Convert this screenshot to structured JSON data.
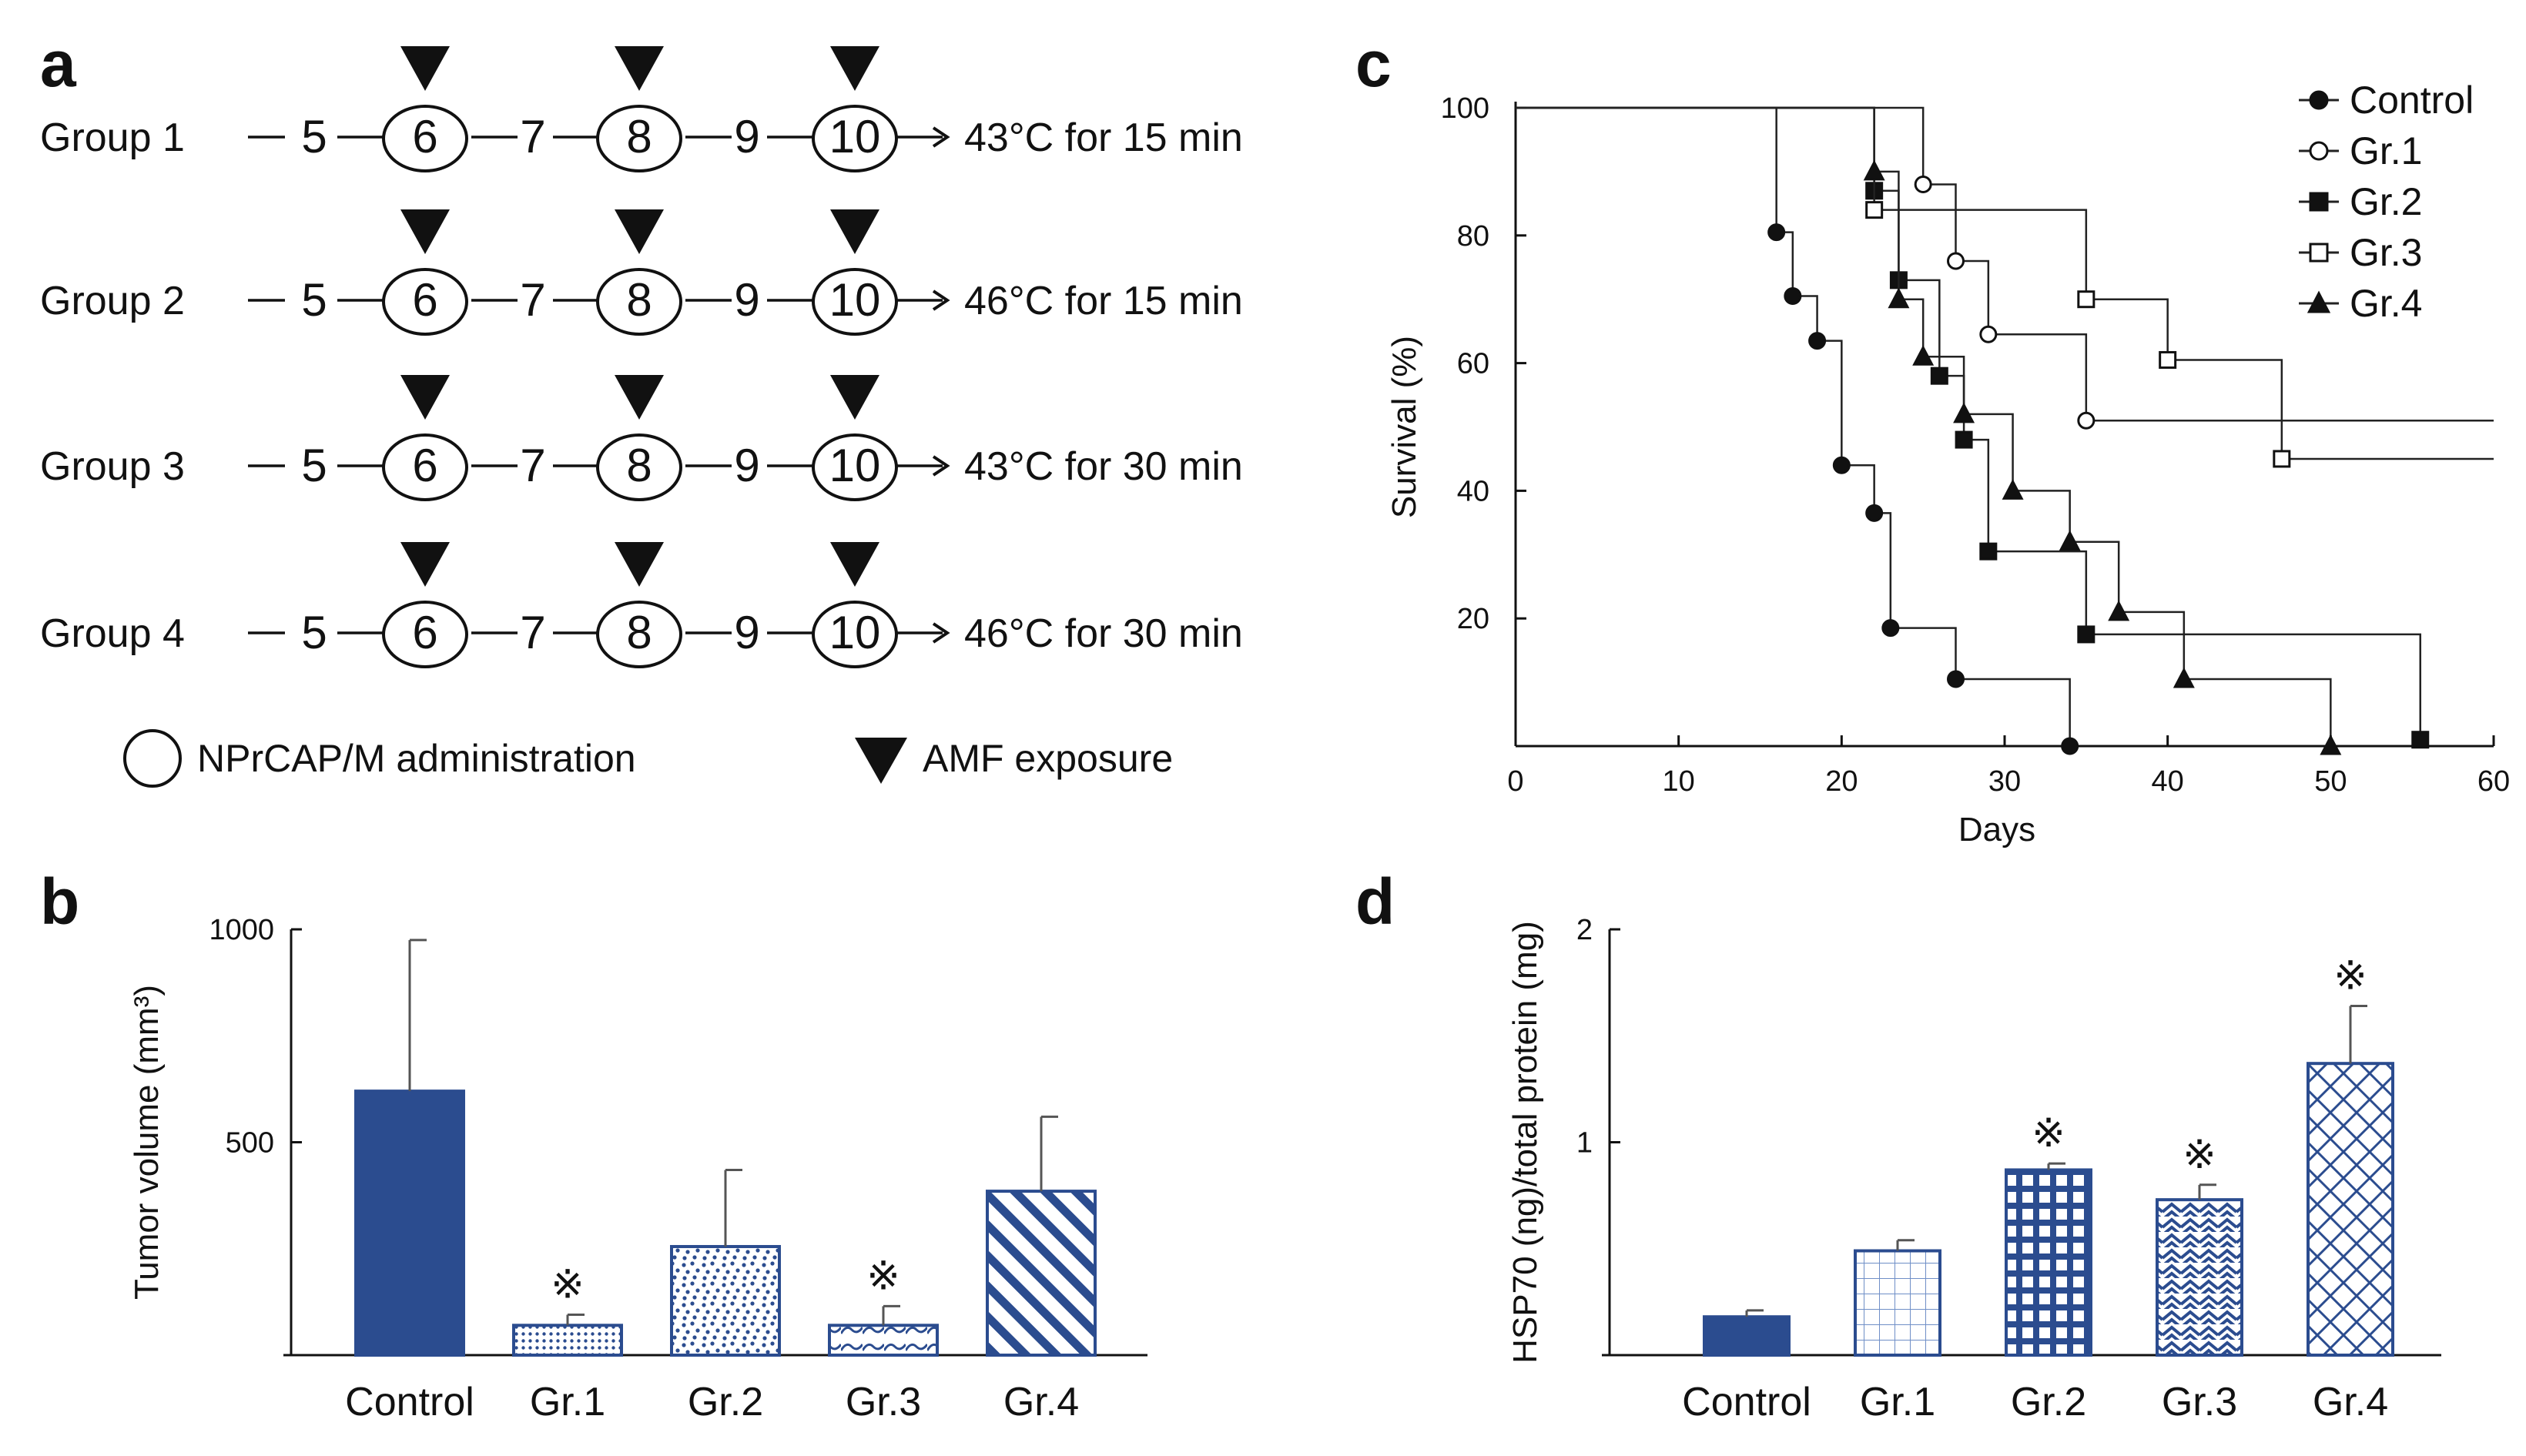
{
  "panels": {
    "a": "a",
    "b": "b",
    "c": "c",
    "d": "d"
  },
  "schedule": {
    "start_day": "5",
    "days": [
      "6",
      "7",
      "8",
      "9",
      "10"
    ],
    "administration_days": [
      "6",
      "8",
      "10"
    ],
    "groups": [
      {
        "label": "Group 1",
        "condition": "43°C for 15 min"
      },
      {
        "label": "Group 2",
        "condition": "46°C for 15 min"
      },
      {
        "label": "Group 3",
        "condition": "43°C for 30 min"
      },
      {
        "label": "Group 4",
        "condition": "46°C for 30 min"
      }
    ],
    "legend": {
      "circle": "NPrCAP/M administration",
      "triangle": "AMF exposure"
    }
  },
  "colors": {
    "navy": "#2b4c8f",
    "black": "#111111"
  },
  "chart_data": [
    {
      "id": "b",
      "type": "bar",
      "categories": [
        "Control",
        "Gr.1",
        "Gr.2",
        "Gr.3",
        "Gr.4"
      ],
      "values": [
        620,
        70,
        255,
        70,
        385
      ],
      "errors": [
        355,
        25,
        180,
        45,
        175
      ],
      "significance": [
        "",
        "※",
        "",
        "※",
        ""
      ],
      "patterns": [
        "solid",
        "dots-fine",
        "dots-random",
        "waves",
        "diagonal"
      ],
      "ylabel": "Tumor volume (mm³)",
      "ylim": [
        0,
        1000
      ],
      "yticks": [
        "1000",
        "500"
      ]
    },
    {
      "id": "c",
      "type": "line",
      "subtype": "kaplan-meier step",
      "xlabel": "Days",
      "ylabel": "Survival (%)",
      "xlim": [
        0,
        60
      ],
      "ylim": [
        0,
        100
      ],
      "xticks": [
        "0",
        "10",
        "20",
        "30",
        "40",
        "50",
        "60"
      ],
      "yticks": [
        "100",
        "80",
        "60",
        "40",
        "20"
      ],
      "series": [
        {
          "name": "Control",
          "marker": "filled-circle",
          "points": [
            [
              0,
              100
            ],
            [
              16,
              80.5
            ],
            [
              17,
              70.5
            ],
            [
              18.5,
              63.5
            ],
            [
              20,
              44
            ],
            [
              22,
              36.5
            ],
            [
              23,
              18.5
            ],
            [
              27,
              10.5
            ],
            [
              34,
              0
            ]
          ]
        },
        {
          "name": "Gr.1",
          "marker": "open-circle",
          "points": [
            [
              0,
              100
            ],
            [
              25,
              88
            ],
            [
              27,
              76
            ],
            [
              29,
              64.5
            ],
            [
              35,
              51
            ],
            [
              60,
              51
            ]
          ]
        },
        {
          "name": "Gr.2",
          "marker": "filled-square",
          "points": [
            [
              0,
              100
            ],
            [
              22,
              87
            ],
            [
              23.5,
              73
            ],
            [
              26,
              58
            ],
            [
              27.5,
              48
            ],
            [
              29,
              30.5
            ],
            [
              35,
              17.5
            ],
            [
              55.5,
              1
            ]
          ]
        },
        {
          "name": "Gr.3",
          "marker": "open-square",
          "points": [
            [
              0,
              100
            ],
            [
              22,
              84
            ],
            [
              35,
              70
            ],
            [
              40,
              60.5
            ],
            [
              47,
              45
            ],
            [
              60,
              45
            ]
          ]
        },
        {
          "name": "Gr.4",
          "marker": "filled-triangle",
          "points": [
            [
              0,
              100
            ],
            [
              22,
              90
            ],
            [
              23.5,
              70
            ],
            [
              25,
              61
            ],
            [
              27.5,
              52
            ],
            [
              30.5,
              40
            ],
            [
              34,
              32
            ],
            [
              37,
              21
            ],
            [
              41,
              10.5
            ],
            [
              50,
              0
            ]
          ]
        }
      ]
    },
    {
      "id": "d",
      "type": "bar",
      "categories": [
        "Control",
        "Gr.1",
        "Gr.2",
        "Gr.3",
        "Gr.4"
      ],
      "values": [
        0.18,
        0.49,
        0.87,
        0.73,
        1.37
      ],
      "errors": [
        0.03,
        0.05,
        0.03,
        0.07,
        0.27
      ],
      "significance": [
        "",
        "",
        "※",
        "※",
        "※"
      ],
      "patterns": [
        "solid",
        "grid-open",
        "checker",
        "herringbone",
        "diamond"
      ],
      "ylabel": "HSP70 (ng)/total protein (mg)",
      "ylim": [
        0,
        2
      ],
      "yticks": [
        "2",
        "1"
      ]
    }
  ]
}
